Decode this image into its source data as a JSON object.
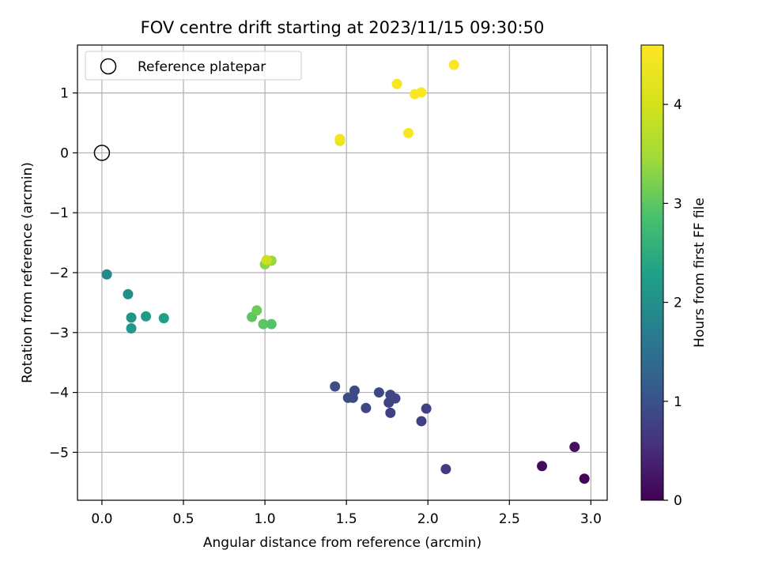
{
  "chart_data": {
    "type": "scatter",
    "title": "FOV centre drift starting at 2023/11/15 09:30:50",
    "xlabel": "Angular distance from reference (arcmin)",
    "ylabel": "Rotation from reference (arcmin)",
    "xlim": [
      -0.15,
      3.1
    ],
    "ylim": [
      -5.8,
      1.8
    ],
    "xticks": [
      0.0,
      0.5,
      1.0,
      1.5,
      2.0,
      2.5,
      3.0
    ],
    "xtick_labels": [
      "0.0",
      "0.5",
      "1.0",
      "1.5",
      "2.0",
      "2.5",
      "3.0"
    ],
    "yticks": [
      -5,
      -4,
      -3,
      -2,
      -1,
      0,
      1
    ],
    "ytick_labels": [
      "−5",
      "−4",
      "−3",
      "−2",
      "−1",
      "0",
      "1"
    ],
    "grid": true,
    "legend": {
      "placement": "upper-left",
      "entries": [
        "Reference platepar"
      ]
    },
    "reference_point": {
      "x": 0.0,
      "y": 0.0,
      "label": "Reference platepar",
      "marker": "open-circle"
    },
    "colorbar": {
      "label": "Hours from first FF file",
      "colormap": "viridis",
      "range": [
        0,
        4.6
      ],
      "ticks": [
        0,
        1,
        2,
        3,
        4
      ],
      "tick_labels": [
        "0",
        "1",
        "2",
        "3",
        "4"
      ]
    },
    "points": [
      {
        "x": 2.96,
        "y": -5.44,
        "c": 0.05
      },
      {
        "x": 2.7,
        "y": -5.23,
        "c": 0.12
      },
      {
        "x": 2.9,
        "y": -4.91,
        "c": 0.18
      },
      {
        "x": 2.11,
        "y": -5.28,
        "c": 0.72
      },
      {
        "x": 1.96,
        "y": -4.48,
        "c": 0.76
      },
      {
        "x": 1.99,
        "y": -4.27,
        "c": 0.8
      },
      {
        "x": 1.77,
        "y": -4.34,
        "c": 0.78
      },
      {
        "x": 1.76,
        "y": -4.17,
        "c": 0.8
      },
      {
        "x": 1.8,
        "y": -4.1,
        "c": 0.82
      },
      {
        "x": 1.77,
        "y": -4.04,
        "c": 0.84
      },
      {
        "x": 1.7,
        "y": -4.0,
        "c": 0.86
      },
      {
        "x": 1.62,
        "y": -4.26,
        "c": 0.88
      },
      {
        "x": 1.55,
        "y": -3.97,
        "c": 0.9
      },
      {
        "x": 1.54,
        "y": -4.09,
        "c": 0.92
      },
      {
        "x": 1.51,
        "y": -4.09,
        "c": 0.93
      },
      {
        "x": 1.43,
        "y": -3.9,
        "c": 0.95
      },
      {
        "x": 0.03,
        "y": -2.03,
        "c": 1.9
      },
      {
        "x": 0.16,
        "y": -2.36,
        "c": 2.0
      },
      {
        "x": 0.18,
        "y": -2.75,
        "c": 2.1
      },
      {
        "x": 0.18,
        "y": -2.93,
        "c": 2.15
      },
      {
        "x": 0.27,
        "y": -2.73,
        "c": 2.2
      },
      {
        "x": 0.38,
        "y": -2.76,
        "c": 2.25
      },
      {
        "x": 0.92,
        "y": -2.74,
        "c": 3.0
      },
      {
        "x": 0.95,
        "y": -2.63,
        "c": 3.1
      },
      {
        "x": 0.99,
        "y": -2.86,
        "c": 3.0
      },
      {
        "x": 1.04,
        "y": -2.86,
        "c": 2.95
      },
      {
        "x": 1.0,
        "y": -1.86,
        "c": 3.3
      },
      {
        "x": 1.04,
        "y": -1.8,
        "c": 3.4
      },
      {
        "x": 1.01,
        "y": -1.79,
        "c": 3.9
      },
      {
        "x": 1.46,
        "y": 0.2,
        "c": 4.2
      },
      {
        "x": 1.46,
        "y": 0.23,
        "c": 4.4
      },
      {
        "x": 1.81,
        "y": 1.15,
        "c": 4.5
      },
      {
        "x": 1.92,
        "y": 0.98,
        "c": 4.55
      },
      {
        "x": 1.96,
        "y": 1.01,
        "c": 4.55
      },
      {
        "x": 1.88,
        "y": 0.33,
        "c": 4.5
      },
      {
        "x": 2.16,
        "y": 1.47,
        "c": 4.6
      }
    ]
  }
}
